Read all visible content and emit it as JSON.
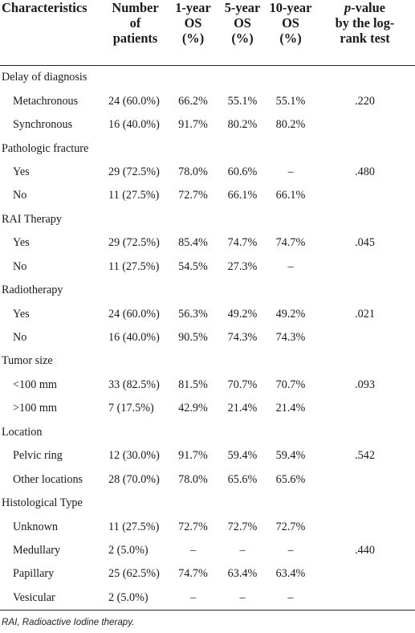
{
  "header": {
    "col1": [
      "Characteristics"
    ],
    "col2": [
      "Number",
      "of",
      "patients"
    ],
    "col3": [
      "1-year",
      "OS",
      "(%)"
    ],
    "col4": [
      "5-year",
      "OS",
      "(%)"
    ],
    "col5": [
      "10-year",
      "OS",
      "(%)"
    ],
    "col6_p": "p",
    "col6": [
      "-value",
      "by the log-",
      "rank test"
    ]
  },
  "rows": [
    {
      "type": "category",
      "label": "Delay of diagnosis"
    },
    {
      "type": "item",
      "label": "Metachronous",
      "n": "24 (60.0%)",
      "os1": "66.2%",
      "os5": "55.1%",
      "os10": "55.1%",
      "p": ".220"
    },
    {
      "type": "item",
      "label": "Synchronous",
      "n": "16 (40.0%)",
      "os1": "91.7%",
      "os5": "80.2%",
      "os10": "80.2%",
      "p": ""
    },
    {
      "type": "category",
      "label": "Pathologic fracture"
    },
    {
      "type": "item",
      "label": "Yes",
      "n": "29 (72.5%)",
      "os1": "78.0%",
      "os5": "60.6%",
      "os10": "–",
      "p": ".480"
    },
    {
      "type": "item",
      "label": "No",
      "n": "11 (27.5%)",
      "os1": "72.7%",
      "os5": "66.1%",
      "os10": "66.1%",
      "p": ""
    },
    {
      "type": "category",
      "label": "RAI Therapy"
    },
    {
      "type": "item",
      "label": "Yes",
      "n": "29 (72.5%)",
      "os1": "85.4%",
      "os5": "74.7%",
      "os10": "74.7%",
      "p": ".045"
    },
    {
      "type": "item",
      "label": "No",
      "n": "11 (27.5%)",
      "os1": "54.5%",
      "os5": "27.3%",
      "os10": "–",
      "p": ""
    },
    {
      "type": "category",
      "label": "Radiotherapy"
    },
    {
      "type": "item",
      "label": "Yes",
      "n": "24 (60.0%)",
      "os1": "56.3%",
      "os5": "49.2%",
      "os10": "49.2%",
      "p": ".021"
    },
    {
      "type": "item",
      "label": "No",
      "n": "16 (40.0%)",
      "os1": "90.5%",
      "os5": "74.3%",
      "os10": "74.3%",
      "p": ""
    },
    {
      "type": "category",
      "label": "Tumor size"
    },
    {
      "type": "item",
      "label": "<100 mm",
      "n": "33 (82.5%)",
      "os1": "81.5%",
      "os5": "70.7%",
      "os10": "70.7%",
      "p": ".093"
    },
    {
      "type": "item",
      "label": ">100 mm",
      "n": "7 (17.5%)",
      "os1": "42.9%",
      "os5": "21.4%",
      "os10": "21.4%",
      "p": ""
    },
    {
      "type": "category",
      "label": "Location"
    },
    {
      "type": "item",
      "label": "Pelvic ring",
      "n": "12 (30.0%)",
      "os1": "91.7%",
      "os5": "59.4%",
      "os10": "59.4%",
      "p": ".542"
    },
    {
      "type": "item",
      "label": "Other locations",
      "n": "28 (70.0%)",
      "os1": "78.0%",
      "os5": "65.6%",
      "os10": "65.6%",
      "p": ""
    },
    {
      "type": "category",
      "label": "Histological Type"
    },
    {
      "type": "item",
      "label": "Unknown",
      "n": "11 (27.5%)",
      "os1": "72.7%",
      "os5": "72.7%",
      "os10": "72.7%",
      "p": ""
    },
    {
      "type": "item",
      "label": "Medullary",
      "n": "2 (5.0%)",
      "os1": "–",
      "os5": "–",
      "os10": "–",
      "p": ".440"
    },
    {
      "type": "item",
      "label": "Papillary",
      "n": "25 (62.5%)",
      "os1": "74.7%",
      "os5": "63.4%",
      "os10": "63.4%",
      "p": ""
    },
    {
      "type": "item",
      "label": "Vesicular",
      "n": "2 (5.0%)",
      "os1": "–",
      "os5": "–",
      "os10": "–",
      "p": ""
    }
  ],
  "footnote": "RAI, Radioactive Iodine therapy."
}
